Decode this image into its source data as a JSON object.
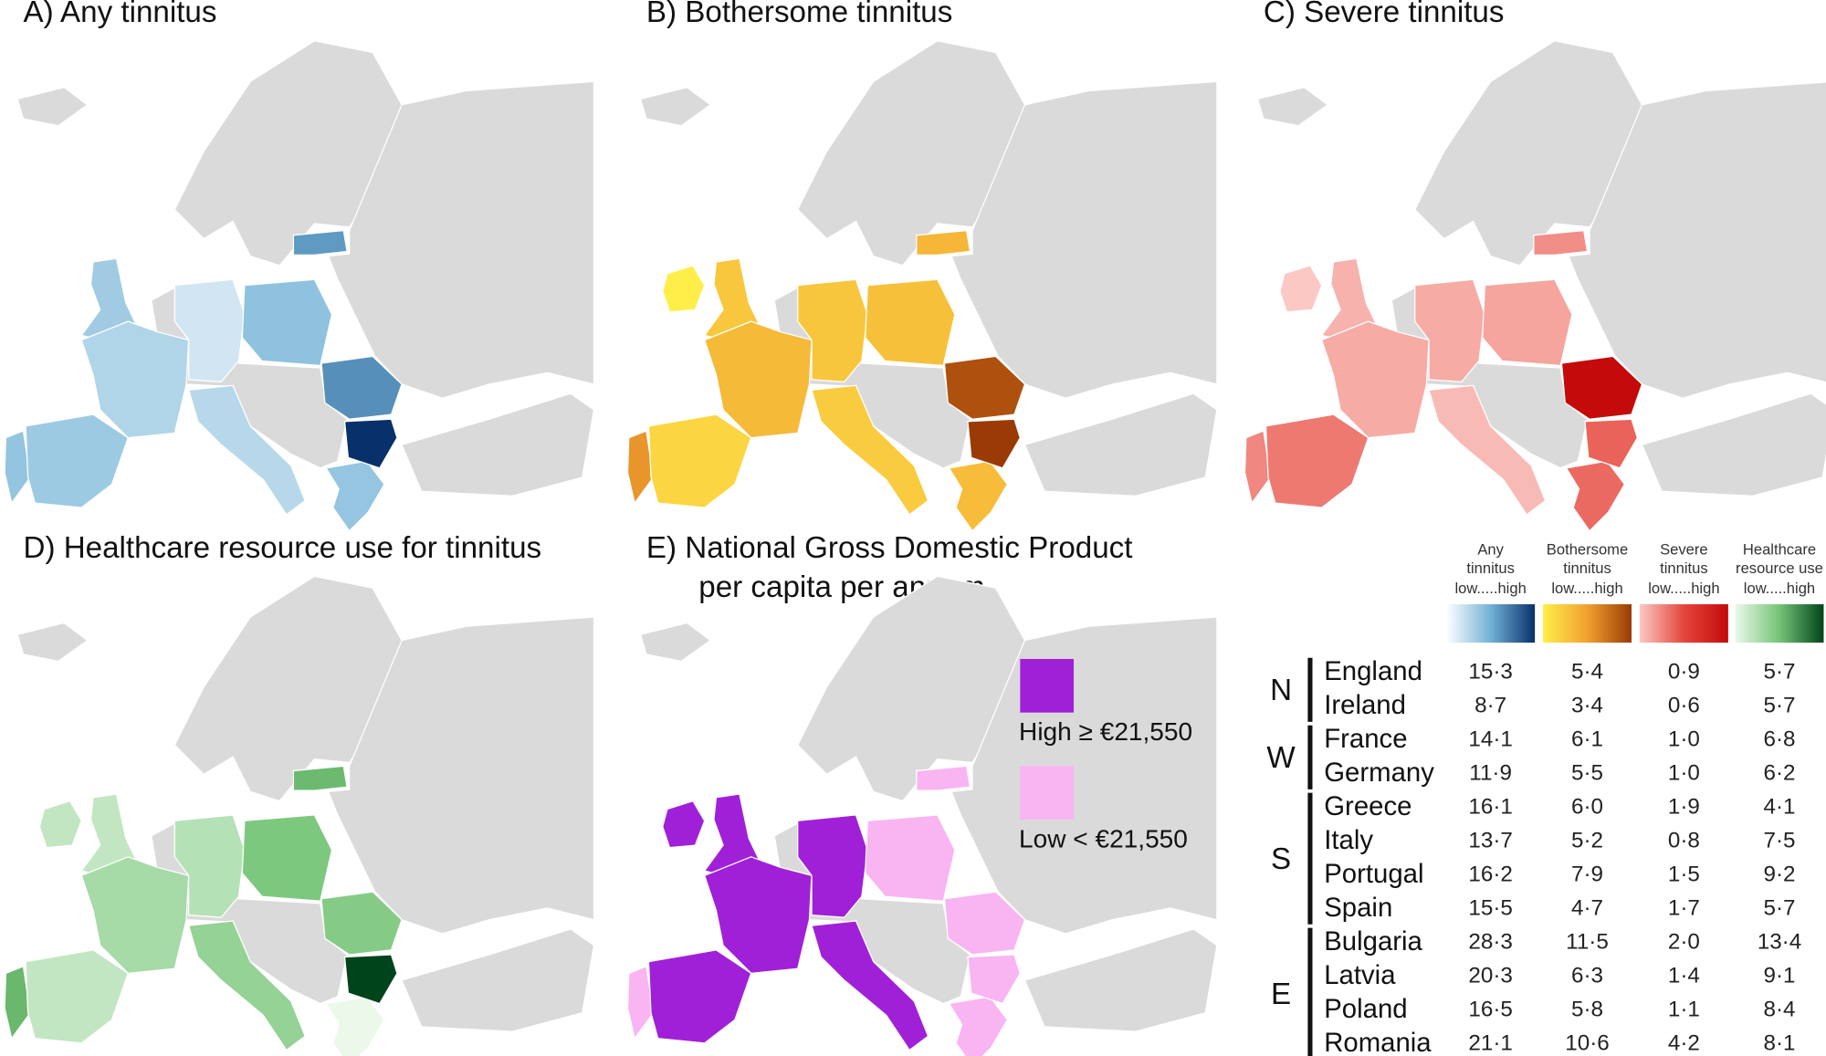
{
  "panels": [
    {
      "title": [
        "A) Any tinnitus"
      ]
    },
    {
      "title": [
        "B) Bothersome tinnitus"
      ]
    },
    {
      "title": [
        "C) Severe tinnitus"
      ]
    },
    {
      "title": [
        "D) Healthcare resource use for tinnitus"
      ]
    },
    {
      "title": [
        "E) National Gross Domestic Product",
        "per capita per annum"
      ]
    }
  ],
  "gdp_legend": [
    {
      "label": "High ≥ €21,550",
      "color": "#a020d8"
    },
    {
      "label": "Low < €21,550",
      "color": "#f9b4f2"
    }
  ],
  "columns": [
    {
      "header": [
        "Any",
        "tinnitus"
      ],
      "scale_label": "low.....high",
      "colors": [
        "#ffffff",
        "#72b2d6",
        "#08306b"
      ]
    },
    {
      "header": [
        "Bothersome",
        "tinnitus"
      ],
      "scale_label": "low.....high",
      "colors": [
        "#ffee4a",
        "#f2a030",
        "#9a3b05"
      ]
    },
    {
      "header": [
        "Severe",
        "tinnitus"
      ],
      "scale_label": "low.....high",
      "colors": [
        "#fbc8c3",
        "#e4463c",
        "#c40a0a"
      ]
    },
    {
      "header": [
        "Healthcare",
        "resource use"
      ],
      "scale_label": "low.....high",
      "colors": [
        "#ebf8ea",
        "#74c476",
        "#00441b"
      ]
    }
  ],
  "regions": [
    {
      "label": "N",
      "countries": [
        {
          "name": "England",
          "gdp": 0,
          "values": [
            15.3,
            5.4,
            0.9,
            5.7
          ],
          "value_labels": [
            "15·3",
            "5·4",
            "0·9",
            "5·7"
          ]
        },
        {
          "name": "Ireland",
          "gdp": 0,
          "values": [
            8.7,
            3.4,
            0.6,
            5.7
          ],
          "value_labels": [
            "8·7",
            "3·4",
            "0·6",
            "5·7"
          ]
        }
      ]
    },
    {
      "label": "W",
      "countries": [
        {
          "name": "France",
          "gdp": 0,
          "values": [
            14.1,
            6.1,
            1.0,
            6.8
          ],
          "value_labels": [
            "14·1",
            "6·1",
            "1·0",
            "6·8"
          ]
        },
        {
          "name": "Germany",
          "gdp": 0,
          "values": [
            11.9,
            5.5,
            1.0,
            6.2
          ],
          "value_labels": [
            "11·9",
            "5·5",
            "1·0",
            "6·2"
          ]
        }
      ]
    },
    {
      "label": "S",
      "countries": [
        {
          "name": "Greece",
          "gdp": 1,
          "values": [
            16.1,
            6.0,
            1.9,
            4.1
          ],
          "value_labels": [
            "16·1",
            "6·0",
            "1·9",
            "4·1"
          ]
        },
        {
          "name": "Italy",
          "gdp": 0,
          "values": [
            13.7,
            5.2,
            0.8,
            7.5
          ],
          "value_labels": [
            "13·7",
            "5·2",
            "0·8",
            "7·5"
          ]
        },
        {
          "name": "Portugal",
          "gdp": 1,
          "values": [
            16.2,
            7.9,
            1.5,
            9.2
          ],
          "value_labels": [
            "16·2",
            "7·9",
            "1·5",
            "9·2"
          ]
        },
        {
          "name": "Spain",
          "gdp": 0,
          "values": [
            15.5,
            4.7,
            1.7,
            5.7
          ],
          "value_labels": [
            "15·5",
            "4·7",
            "1·7",
            "5·7"
          ]
        }
      ]
    },
    {
      "label": "E",
      "countries": [
        {
          "name": "Bulgaria",
          "gdp": 1,
          "values": [
            28.3,
            11.5,
            2.0,
            13.4
          ],
          "value_labels": [
            "28·3",
            "11·5",
            "2·0",
            "13·4"
          ]
        },
        {
          "name": "Latvia",
          "gdp": 1,
          "values": [
            20.3,
            6.3,
            1.4,
            9.1
          ],
          "value_labels": [
            "20·3",
            "6·3",
            "1·4",
            "9·1"
          ]
        },
        {
          "name": "Poland",
          "gdp": 1,
          "values": [
            16.5,
            5.8,
            1.1,
            8.4
          ],
          "value_labels": [
            "16·5",
            "5·8",
            "1·1",
            "8·4"
          ]
        },
        {
          "name": "Romania",
          "gdp": 1,
          "values": [
            21.1,
            10.6,
            4.2,
            8.1
          ],
          "value_labels": [
            "21·1",
            "10·6",
            "4·2",
            "8·1"
          ]
        }
      ]
    }
  ]
}
